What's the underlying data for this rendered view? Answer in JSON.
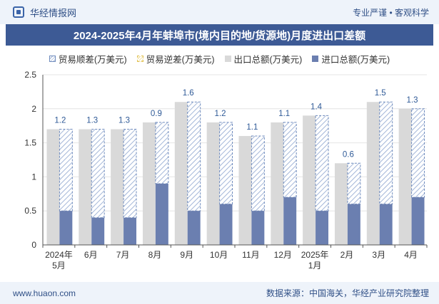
{
  "header": {
    "brand": "华经情报网",
    "tagline": "专业严谨 • 客观科学",
    "title": "2024-2025年4月年蚌埠市(境内目的地/货源地)月度进出口差额"
  },
  "footer": {
    "website": "www.huaon.com",
    "source": "数据来源：中国海关，华经产业研究院整理"
  },
  "colors": {
    "export": "#d9d9d9",
    "import": "#6b7fb0",
    "surplus_stroke": "#6f8bbd",
    "surplus_hatch": "#a3b6d8",
    "deficit_stroke": "#e0c050",
    "label": "#2f5a97",
    "axis": "#555555",
    "grid": "#e4e4e4"
  },
  "chart_data": {
    "type": "bar",
    "title": "2024-2025年4月年蚌埠市(境内目的地/货源地)月度进出口差额",
    "legend": [
      {
        "key": "surplus",
        "label": "贸易顺差(万美元)"
      },
      {
        "key": "deficit",
        "label": "贸易逆差(万美元)"
      },
      {
        "key": "export",
        "label": "出口总额(万美元)"
      },
      {
        "key": "import",
        "label": "进口总额(万美元)"
      }
    ],
    "legend_position": "top",
    "categories": [
      "2024年5月",
      "6月",
      "7月",
      "8月",
      "9月",
      "10月",
      "11月",
      "12月",
      "2025年1月",
      "2月",
      "3月",
      "4月"
    ],
    "series": [
      {
        "name": "出口总额(万美元)",
        "key": "export",
        "values": [
          1.7,
          1.7,
          1.7,
          1.8,
          2.1,
          1.8,
          1.6,
          1.8,
          1.9,
          1.2,
          2.1,
          2.0
        ]
      },
      {
        "name": "进口总额(万美元)",
        "key": "import",
        "values": [
          0.5,
          0.4,
          0.4,
          0.9,
          0.5,
          0.6,
          0.5,
          0.7,
          0.5,
          0.6,
          0.6,
          0.7
        ]
      },
      {
        "name": "贸易顺差(万美元)",
        "key": "surplus",
        "values": [
          1.2,
          1.3,
          1.3,
          0.9,
          1.6,
          1.2,
          1.1,
          1.1,
          1.4,
          0.6,
          1.5,
          1.3
        ]
      },
      {
        "name": "贸易逆差(万美元)",
        "key": "deficit",
        "values": [
          0,
          0,
          0,
          0,
          0,
          0,
          0,
          0,
          0,
          0,
          0,
          0
        ]
      }
    ],
    "data_labels": [
      "1.2",
      "1.3",
      "1.3",
      "0.9",
      "1.6",
      "1.2",
      "1.1",
      "1.1",
      "1.4",
      "0.6",
      "1.5",
      "1.3"
    ],
    "ylim": [
      0,
      2.5
    ],
    "yticks": [
      "0",
      "0.5",
      "1",
      "1.5",
      "2",
      "2.5"
    ],
    "grid": true,
    "xlabel": "",
    "ylabel": ""
  }
}
